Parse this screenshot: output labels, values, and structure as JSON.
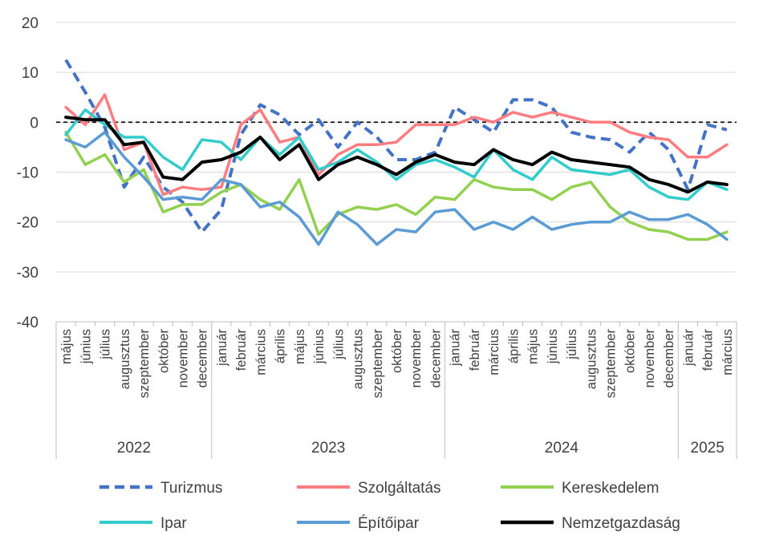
{
  "chart_data": {
    "type": "line",
    "title": "",
    "xlabel": "",
    "ylabel": "",
    "ylim": [
      -40,
      20
    ],
    "yticks": [
      20,
      10,
      0,
      -10,
      -20,
      -30,
      -40
    ],
    "grid": "horizontal",
    "reference_line": {
      "value": 0,
      "style": "dashed",
      "color": "#000000"
    },
    "categories": [
      "május",
      "június",
      "július",
      "augusztus",
      "szeptember",
      "október",
      "november",
      "december",
      "január",
      "február",
      "március",
      "április",
      "május",
      "június",
      "július",
      "augusztus",
      "szeptember",
      "október",
      "november",
      "december",
      "január",
      "február",
      "március",
      "április",
      "május",
      "június",
      "július",
      "augusztus",
      "szeptember",
      "október",
      "november",
      "december",
      "január",
      "február",
      "március"
    ],
    "year_groups": [
      {
        "label": "2022",
        "start": 0,
        "end": 7
      },
      {
        "label": "2023",
        "start": 8,
        "end": 19
      },
      {
        "label": "2024",
        "start": 20,
        "end": 31
      },
      {
        "label": "2025",
        "start": 32,
        "end": 34
      }
    ],
    "series": [
      {
        "name": "Turizmus",
        "color": "#4472C4",
        "dash": true,
        "width": 4,
        "values": [
          12.5,
          6,
          -1,
          -13,
          -7,
          -13,
          -16,
          -22,
          -17.5,
          -2.5,
          3.5,
          1.5,
          -2.5,
          0.5,
          -5,
          0,
          -3,
          -7.5,
          -7.5,
          -6,
          3,
          0.5,
          -2,
          4.5,
          4.5,
          3,
          -2,
          -3,
          -3.5,
          -6,
          -2,
          -5.5,
          -13.5,
          -0.5,
          -1.5
        ]
      },
      {
        "name": "Szolgáltatás",
        "color": "#FF7C80",
        "dash": false,
        "width": 3.5,
        "values": [
          3,
          -0.5,
          5.5,
          -5.5,
          -4,
          -14.5,
          -13,
          -13.5,
          -13,
          -0.5,
          2.5,
          -4,
          -3,
          -10.5,
          -6.5,
          -4.5,
          -4.5,
          -4,
          -0.5,
          -0.5,
          -0.5,
          1,
          0,
          2,
          1,
          2,
          1,
          0,
          0,
          -2,
          -3,
          -3.5,
          -7,
          -7,
          -4.5
        ]
      },
      {
        "name": "Kereskedelem",
        "color": "#92D050",
        "dash": false,
        "width": 3.5,
        "values": [
          -2,
          -8.5,
          -6.5,
          -12,
          -9.5,
          -18,
          -16.5,
          -16.5,
          -14,
          -12.5,
          -15.5,
          -17.5,
          -11.5,
          -22.5,
          -18.5,
          -17,
          -17.5,
          -16.5,
          -18.5,
          -15,
          -15.5,
          -11.5,
          -13,
          -13.5,
          -13.5,
          -15.5,
          -13,
          -12,
          -17,
          -20,
          -21.5,
          -22,
          -23.5,
          -23.5,
          -22
        ]
      },
      {
        "name": "Ipar",
        "color": "#33CCCC",
        "dash": false,
        "width": 3.5,
        "values": [
          -2.5,
          2.5,
          -0.5,
          -3,
          -3,
          -7,
          -9.5,
          -3.5,
          -4,
          -7.5,
          -3,
          -6.5,
          -3,
          -9.5,
          -8,
          -5.5,
          -8,
          -11.5,
          -8.5,
          -7.5,
          -9,
          -11,
          -5.5,
          -9.5,
          -11.5,
          -7,
          -9.5,
          -10,
          -10.5,
          -9.5,
          -13,
          -15,
          -15.5,
          -12,
          -13.5
        ]
      },
      {
        "name": "Építőipar",
        "color": "#5B9BD5",
        "dash": false,
        "width": 3.5,
        "values": [
          -3.5,
          -5,
          -2,
          -7,
          -11,
          -15.5,
          -15,
          -15.5,
          -11.5,
          -12.5,
          -17,
          -16,
          -19,
          -24.5,
          -18,
          -20.5,
          -24.5,
          -21.5,
          -22,
          -18,
          -17.5,
          -21.5,
          -20,
          -21.5,
          -19,
          -21.5,
          -20.5,
          -20,
          -20,
          -18,
          -19.5,
          -19.5,
          -18.5,
          -20.5,
          -23.5
        ]
      },
      {
        "name": "Nemzetgazdaság",
        "color": "#000000",
        "dash": false,
        "width": 4,
        "values": [
          1,
          0.5,
          0.5,
          -4.5,
          -4,
          -11,
          -11.5,
          -8,
          -7.5,
          -6,
          -3,
          -7.5,
          -4.5,
          -11.5,
          -8.5,
          -7,
          -8.5,
          -10.5,
          -8,
          -6.5,
          -8,
          -8.5,
          -5.5,
          -7.5,
          -8.5,
          -6,
          -7.5,
          -8,
          -8.5,
          -9,
          -11.5,
          -12.5,
          -14,
          -12,
          -12.5
        ]
      }
    ],
    "legend": {
      "placement": "bottom",
      "columns": 3
    }
  }
}
